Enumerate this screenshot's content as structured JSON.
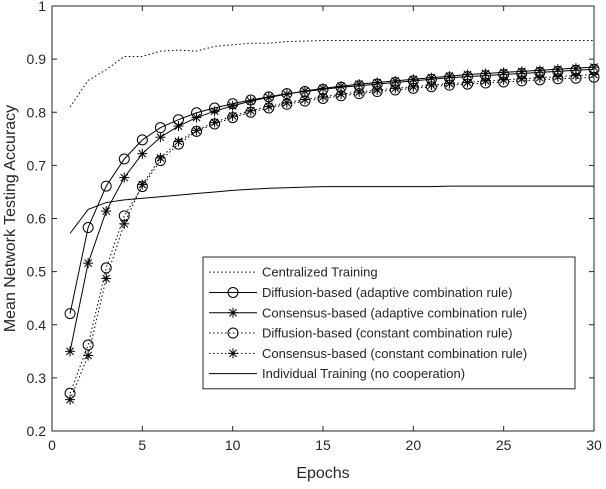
{
  "chart_data": {
    "type": "line",
    "xlabel": "Epochs",
    "ylabel": "Mean Network Testing Accuracy",
    "xlim": [
      0,
      30
    ],
    "ylim": [
      0.2,
      1
    ],
    "xticks": [
      "0",
      "5",
      "10",
      "15",
      "20",
      "25",
      "30"
    ],
    "yticks": [
      "0.2",
      "0.3",
      "0.4",
      "0.5",
      "0.6",
      "0.7",
      "0.8",
      "0.9",
      "1"
    ],
    "grid": false,
    "legend_position": "bottom-right",
    "x": [
      1,
      2,
      3,
      4,
      5,
      6,
      7,
      8,
      9,
      10,
      11,
      12,
      13,
      14,
      15,
      16,
      17,
      18,
      19,
      20,
      21,
      22,
      23,
      24,
      25,
      26,
      27,
      28,
      29,
      30
    ],
    "series": [
      {
        "name": "Centralized Training",
        "line": "dotted",
        "marker": "none",
        "values": [
          0.81,
          0.86,
          0.88,
          0.905,
          0.905,
          0.915,
          0.917,
          0.915,
          0.924,
          0.927,
          0.93,
          0.93,
          0.933,
          0.934,
          0.935,
          0.935,
          0.935,
          0.935,
          0.935,
          0.935,
          0.935,
          0.935,
          0.935,
          0.935,
          0.935,
          0.935,
          0.935,
          0.935,
          0.935,
          0.935
        ]
      },
      {
        "name": "Diffusion-based (adaptive combination rule)",
        "line": "solid",
        "marker": "circle",
        "values": [
          0.421,
          0.583,
          0.661,
          0.712,
          0.748,
          0.771,
          0.786,
          0.799,
          0.808,
          0.816,
          0.823,
          0.829,
          0.835,
          0.839,
          0.843,
          0.847,
          0.85,
          0.853,
          0.856,
          0.859,
          0.862,
          0.865,
          0.867,
          0.869,
          0.871,
          0.873,
          0.875,
          0.877,
          0.879,
          0.881
        ]
      },
      {
        "name": "Consensus-based (adaptive combination rule)",
        "line": "solid",
        "marker": "star",
        "values": [
          0.35,
          0.516,
          0.614,
          0.677,
          0.722,
          0.753,
          0.774,
          0.79,
          0.802,
          0.812,
          0.821,
          0.828,
          0.834,
          0.84,
          0.845,
          0.849,
          0.853,
          0.856,
          0.859,
          0.862,
          0.865,
          0.868,
          0.871,
          0.873,
          0.875,
          0.877,
          0.879,
          0.881,
          0.883,
          0.885
        ]
      },
      {
        "name": "Diffusion-based (constant combination rule)",
        "line": "dotted",
        "marker": "circle",
        "values": [
          0.271,
          0.362,
          0.507,
          0.605,
          0.66,
          0.709,
          0.74,
          0.764,
          0.778,
          0.79,
          0.8,
          0.808,
          0.815,
          0.821,
          0.826,
          0.831,
          0.835,
          0.839,
          0.842,
          0.845,
          0.848,
          0.851,
          0.853,
          0.855,
          0.857,
          0.859,
          0.861,
          0.863,
          0.864,
          0.866
        ]
      },
      {
        "name": "Consensus-based (constant combination rule)",
        "line": "dotted",
        "marker": "star",
        "values": [
          0.259,
          0.342,
          0.487,
          0.59,
          0.664,
          0.714,
          0.745,
          0.766,
          0.781,
          0.793,
          0.803,
          0.811,
          0.818,
          0.824,
          0.829,
          0.834,
          0.838,
          0.842,
          0.845,
          0.848,
          0.851,
          0.854,
          0.856,
          0.859,
          0.861,
          0.863,
          0.865,
          0.867,
          0.869,
          0.871
        ]
      },
      {
        "name": "Individual Training (no cooperation)",
        "line": "solid",
        "marker": "none",
        "values": [
          0.572,
          0.617,
          0.63,
          0.635,
          0.638,
          0.641,
          0.644,
          0.647,
          0.65,
          0.653,
          0.655,
          0.657,
          0.658,
          0.659,
          0.66,
          0.66,
          0.66,
          0.66,
          0.66,
          0.66,
          0.66,
          0.661,
          0.661,
          0.661,
          0.661,
          0.661,
          0.661,
          0.661,
          0.661,
          0.661
        ]
      }
    ]
  }
}
